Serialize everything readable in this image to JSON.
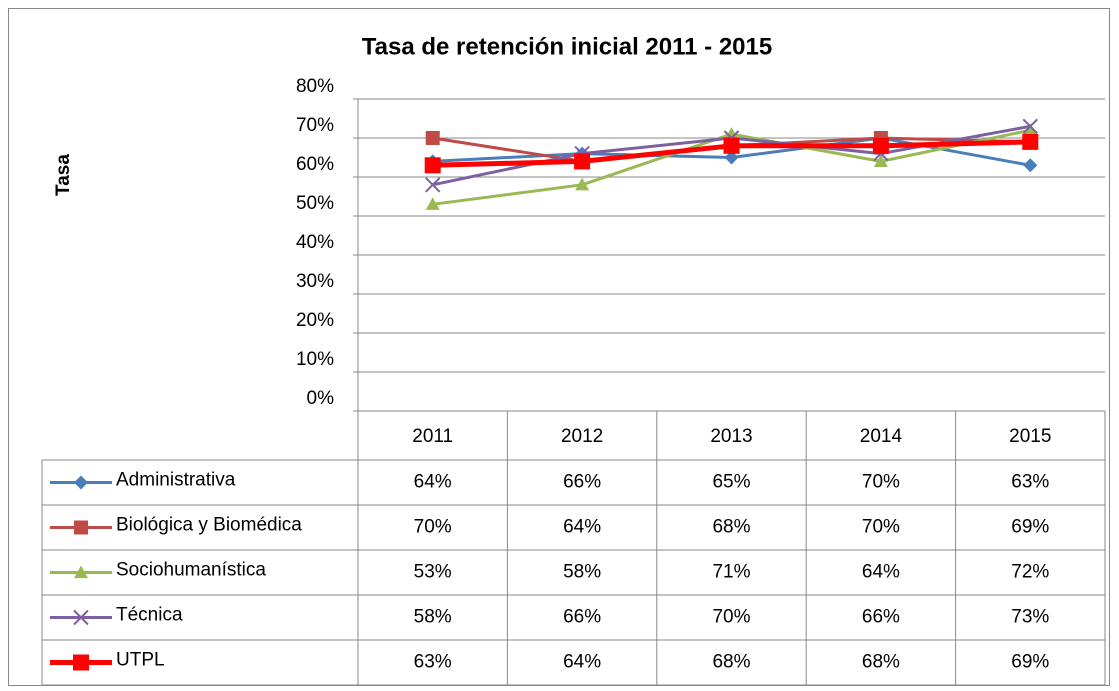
{
  "chart_data": {
    "type": "line",
    "title": "Tasa de retención inicial 2011 - 2015",
    "y_label": "Tasa",
    "categories": [
      "2011",
      "2012",
      "2013",
      "2014",
      "2015"
    ],
    "ylim": [
      0,
      80
    ],
    "yticks": [
      {
        "value": 0,
        "label": "0%"
      },
      {
        "value": 10,
        "label": "10%"
      },
      {
        "value": 20,
        "label": "20%"
      },
      {
        "value": 30,
        "label": "30%"
      },
      {
        "value": 40,
        "label": "40%"
      },
      {
        "value": 50,
        "label": "50%"
      },
      {
        "value": 60,
        "label": "60%"
      },
      {
        "value": 70,
        "label": "70%"
      },
      {
        "value": 80,
        "label": "80%"
      }
    ],
    "grid": true,
    "series": [
      {
        "name": "Administrativa",
        "color": "#4a7ebb",
        "marker": "diamond",
        "linewidth": 3,
        "values": [
          64,
          66,
          65,
          70,
          63
        ],
        "value_labels": [
          "64%",
          "66%",
          "65%",
          "70%",
          "63%"
        ]
      },
      {
        "name": "Biológica y Biomédica",
        "color": "#be4b48",
        "marker": "square",
        "linewidth": 3,
        "values": [
          70,
          64,
          68,
          70,
          69
        ],
        "value_labels": [
          "70%",
          "64%",
          "68%",
          "70%",
          "69%"
        ]
      },
      {
        "name": "Sociohumanística",
        "color": "#98b954",
        "marker": "triangle",
        "linewidth": 3,
        "values": [
          53,
          58,
          71,
          64,
          72
        ],
        "value_labels": [
          "53%",
          "58%",
          "71%",
          "64%",
          "72%"
        ]
      },
      {
        "name": "Técnica",
        "color": "#7d60a0",
        "marker": "x",
        "linewidth": 3,
        "values": [
          58,
          66,
          70,
          66,
          73
        ],
        "value_labels": [
          "58%",
          "66%",
          "70%",
          "66%",
          "73%"
        ]
      },
      {
        "name": "UTPL",
        "color": "#ff0000",
        "marker": "square",
        "linewidth": 5,
        "values": [
          63,
          64,
          68,
          68,
          69
        ],
        "value_labels": [
          "63%",
          "64%",
          "68%",
          "68%",
          "69%"
        ]
      }
    ]
  }
}
